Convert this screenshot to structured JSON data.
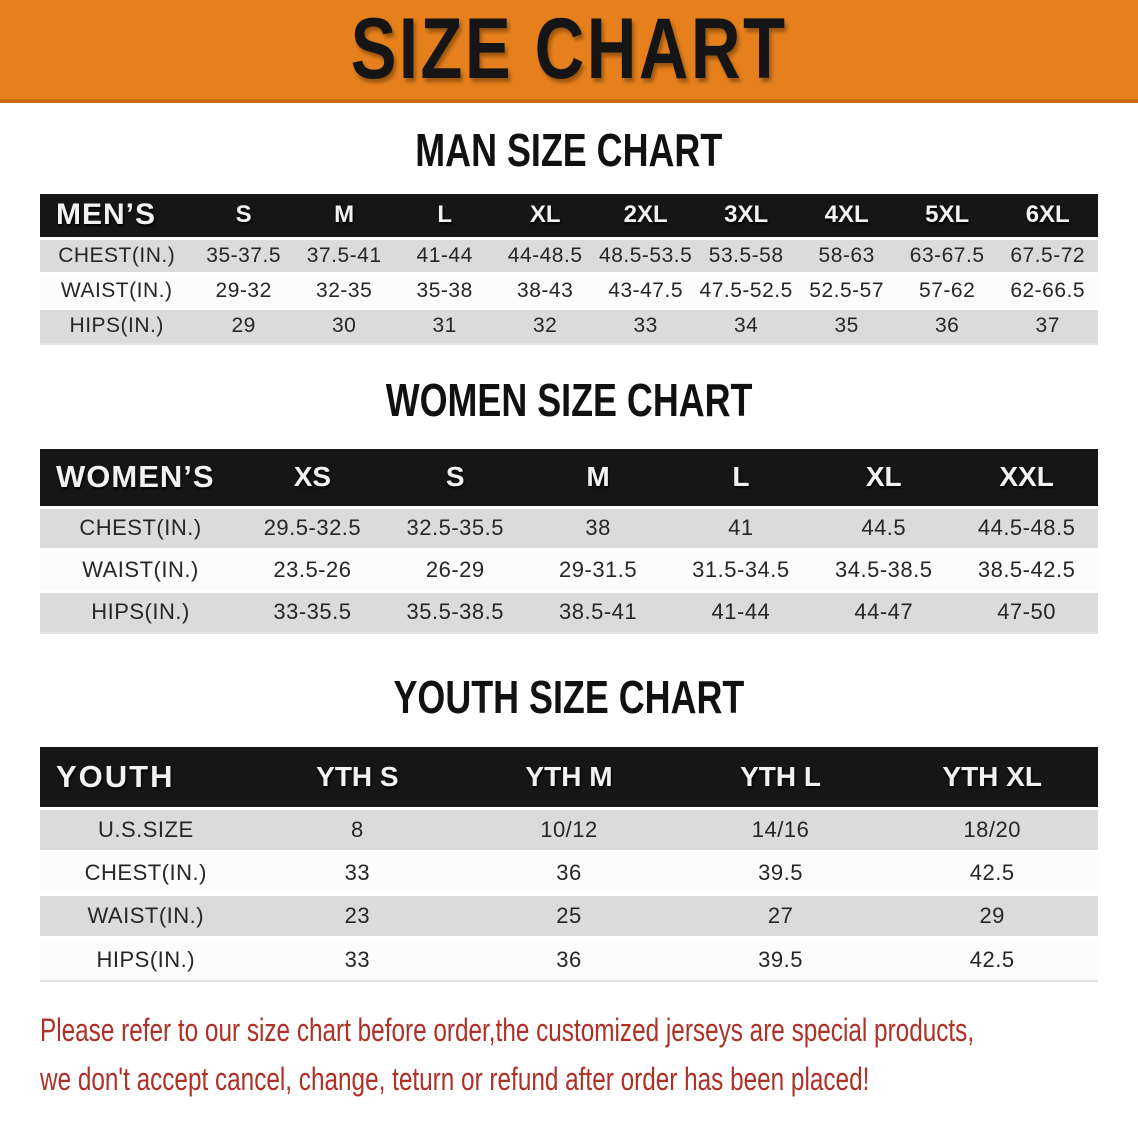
{
  "banner": {
    "title": "SIZE CHART"
  },
  "colors": {
    "banner_bg": "#E6801C",
    "banner_border": "#C96F12",
    "band_bg": "#161616",
    "band_text": "#F2F2F2",
    "row_gray": "#DBDBDB",
    "row_white": "#FCFCFC",
    "text_dark": "#262626",
    "heading_black": "#111111",
    "footer_red": "#AE3127"
  },
  "sections": [
    {
      "heading": "MAN SIZE CHART",
      "table": {
        "label": "MEN’S",
        "columns": [
          "S",
          "M",
          "L",
          "XL",
          "2XL",
          "3XL",
          "4XL",
          "5XL",
          "6XL"
        ],
        "rows": [
          {
            "label": "CHEST(IN.)",
            "values": [
              "35-37.5",
              "37.5-41",
              "41-44",
              "44-48.5",
              "48.5-53.5",
              "53.5-58",
              "58-63",
              "63-67.5",
              "67.5-72"
            ]
          },
          {
            "label": "WAIST(IN.)",
            "values": [
              "29-32",
              "32-35",
              "35-38",
              "38-43",
              "43-47.5",
              "47.5-52.5",
              "52.5-57",
              "57-62",
              "62-66.5"
            ]
          },
          {
            "label": "HIPS(IN.)",
            "values": [
              "29",
              "30",
              "31",
              "32",
              "33",
              "34",
              "35",
              "36",
              "37"
            ]
          }
        ]
      }
    },
    {
      "heading": "WOMEN SIZE CHART",
      "table": {
        "label": "WOMEN’S",
        "columns": [
          "XS",
          "S",
          "M",
          "L",
          "XL",
          "XXL"
        ],
        "rows": [
          {
            "label": "CHEST(IN.)",
            "values": [
              "29.5-32.5",
              "32.5-35.5",
              "38",
              "41",
              "44.5",
              "44.5-48.5"
            ]
          },
          {
            "label": "WAIST(IN.)",
            "values": [
              "23.5-26",
              "26-29",
              "29-31.5",
              "31.5-34.5",
              "34.5-38.5",
              "38.5-42.5"
            ]
          },
          {
            "label": "HIPS(IN.)",
            "values": [
              "33-35.5",
              "35.5-38.5",
              "38.5-41",
              "41-44",
              "44-47",
              "47-50"
            ]
          }
        ]
      }
    },
    {
      "heading": "YOUTH SIZE CHART",
      "table": {
        "label": "YOUTH",
        "columns": [
          "YTH S",
          "YTH M",
          "YTH L",
          "YTH XL"
        ],
        "rows": [
          {
            "label": "U.S.SIZE",
            "values": [
              "8",
              "10/12",
              "14/16",
              "18/20"
            ]
          },
          {
            "label": "CHEST(IN.)",
            "values": [
              "33",
              "36",
              "39.5",
              "42.5"
            ]
          },
          {
            "label": "WAIST(IN.)",
            "values": [
              "23",
              "25",
              "27",
              "29"
            ]
          },
          {
            "label": "HIPS(IN.)",
            "values": [
              "33",
              "36",
              "39.5",
              "42.5"
            ]
          }
        ]
      }
    }
  ],
  "footer": {
    "line1": "Please refer to our size chart before order,the customized jerseys are special products,",
    "line2": "we don't accept cancel, change, teturn or refund after order has been placed!"
  }
}
